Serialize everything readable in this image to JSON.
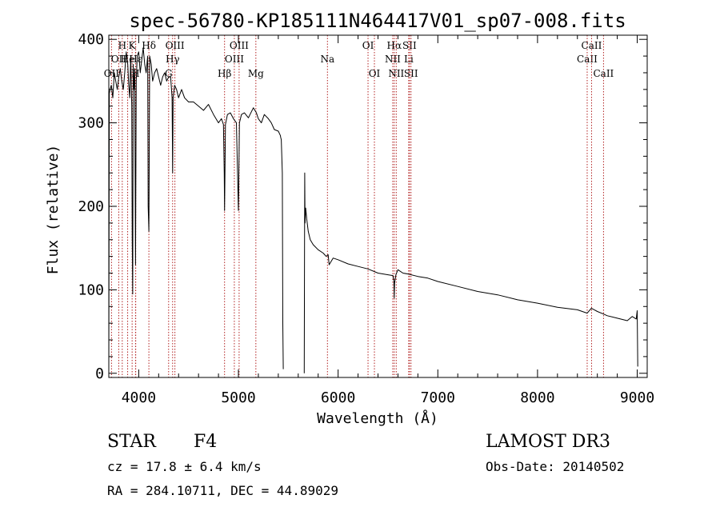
{
  "chart_data": {
    "type": "line",
    "title": "spec-56780-KP185111N464417V01_sp07-008.fits",
    "xlabel": "Wavelength (Å)",
    "ylabel": "Flux (relative)",
    "xlim": [
      3700,
      9100
    ],
    "ylim": [
      -5,
      405
    ],
    "x_ticks": [
      4000,
      5000,
      6000,
      7000,
      8000,
      9000
    ],
    "y_ticks": [
      0,
      100,
      200,
      300,
      400
    ],
    "series": [
      {
        "name": "flux",
        "segments": [
          {
            "x": [
              3700,
              3705,
              3712,
              3725,
              3740,
              3755,
              3770,
              3785,
              3800,
              3815,
              3830,
              3845,
              3860,
              3875,
              3890,
              3900,
              3910,
              3920,
              3930,
              3935,
              3940,
              3945,
              3950,
              3960,
              3968,
              3975,
              3985,
              4000,
              4015,
              4030,
              4045,
              4060,
              4075,
              4090,
              4095,
              4102,
              4110,
              4125,
              4140,
              4160,
              4180,
              4200,
              4220,
              4240,
              4260,
              4280,
              4300,
              4320,
              4335,
              4340,
              4345,
              4360,
              4380,
              4400,
              4430,
              4460,
              4500,
              4550,
              4600,
              4650,
              4700,
              4750,
              4800,
              4830,
              4850,
              4858,
              4861,
              4864,
              4870,
              4890,
              4920,
              4950,
              4980,
              5000,
              5010,
              5030,
              5060,
              5100,
              5150,
              5180,
              5200,
              5230,
              5260,
              5300,
              5330,
              5360,
              5400,
              5420,
              5425,
              5430,
              5440,
              5445,
              5450
            ],
            "y": [
              0,
              335,
              340,
              345,
              330,
              360,
              350,
              340,
              355,
              365,
              350,
              340,
              360,
              385,
              370,
              345,
              330,
              380,
              320,
              160,
              95,
              370,
              340,
              365,
              130,
              350,
              380,
              385,
              360,
              375,
              390,
              370,
              360,
              380,
              200,
              170,
              380,
              370,
              350,
              360,
              365,
              355,
              345,
              355,
              360,
              350,
              355,
              355,
              330,
              240,
              330,
              345,
              340,
              330,
              340,
              330,
              325,
              325,
              320,
              315,
              322,
              310,
              300,
              305,
              298,
              240,
              195,
              230,
              298,
              310,
              312,
              305,
              300,
              195,
              300,
              310,
              312,
              306,
              318,
              312,
              305,
              300,
              310,
              305,
              300,
              292,
              290,
              285,
              282,
              280,
              240,
              60,
              5
            ]
          },
          {
            "x": [
              5660,
              5665,
              5668,
              5675,
              5685,
              5700,
              5720,
              5750,
              5800,
              5850,
              5880,
              5900,
              5910,
              5950,
              6000,
              6100,
              6200,
              6300,
              6400,
              6500,
              6550,
              6560,
              6563,
              6566,
              6580,
              6600,
              6650,
              6700,
              6800,
              6900,
              7000,
              7200,
              7400,
              7600,
              7800,
              8000,
              8200,
              8400,
              8498,
              8540,
              8570,
              8600,
              8662,
              8700,
              8800,
              8900,
              8950,
              8990,
              9000,
              9005
            ],
            "y": [
              0,
              240,
              180,
              198,
              185,
              170,
              160,
              154,
              148,
              144,
              140,
              142,
              130,
              138,
              136,
              131,
              128,
              125,
              120,
              118,
              117,
              110,
              90,
              108,
              118,
              124,
              120,
              119,
              116,
              114,
              110,
              104,
              98,
              94,
              88,
              84,
              79,
              76,
              72,
              78,
              76,
              74,
              71,
              69,
              66,
              63,
              68,
              65,
              75,
              8
            ]
          }
        ]
      }
    ],
    "line_markers": [
      {
        "wl": 3727,
        "label": "OII",
        "row": 3
      },
      {
        "wl": 3800,
        "label": "OII",
        "row": 2
      },
      {
        "wl": 3835,
        "label": "H",
        "row": 1
      },
      {
        "wl": 3889,
        "label": "He",
        "row": 2
      },
      {
        "wl": 3934,
        "label": "K",
        "row": 1
      },
      {
        "wl": 3968,
        "label": "H",
        "row": 3
      },
      {
        "wl": 3970,
        "label": "Hε",
        "row": 2
      },
      {
        "wl": 4102,
        "label": "Hδ",
        "row": 1
      },
      {
        "wl": 4300,
        "label": "G",
        "row": 3
      },
      {
        "wl": 4340,
        "label": "Hγ",
        "row": 2
      },
      {
        "wl": 4363,
        "label": "OIII",
        "row": 1
      },
      {
        "wl": 4861,
        "label": "Hβ",
        "row": 3
      },
      {
        "wl": 4959,
        "label": "OIII",
        "row": 2
      },
      {
        "wl": 5007,
        "label": "OIII",
        "row": 1
      },
      {
        "wl": 5175,
        "label": "Mg",
        "row": 3
      },
      {
        "wl": 5893,
        "label": "Na",
        "row": 2
      },
      {
        "wl": 6300,
        "label": "OI",
        "row": 1
      },
      {
        "wl": 6364,
        "label": "OI",
        "row": 3
      },
      {
        "wl": 6548,
        "label": "NII",
        "row": 2
      },
      {
        "wl": 6563,
        "label": "Hα",
        "row": 1
      },
      {
        "wl": 6583,
        "label": "NII",
        "row": 3
      },
      {
        "wl": 6708,
        "label": "Li",
        "row": 2
      },
      {
        "wl": 6716,
        "label": "SII",
        "row": 1
      },
      {
        "wl": 6731,
        "label": "SII",
        "row": 3
      },
      {
        "wl": 8498,
        "label": "CaII",
        "row": 2
      },
      {
        "wl": 8542,
        "label": "CaII",
        "row": 1
      },
      {
        "wl": 8662,
        "label": "CaII",
        "row": 3
      }
    ]
  },
  "info": {
    "class": "STAR",
    "subclass": "F4",
    "survey": "LAMOST DR3",
    "cz": "cz = 17.8 ± 6.4 km/s",
    "obs_date": "Obs-Date: 20140502",
    "coords": "RA = 284.10711, DEC =  44.89029"
  }
}
